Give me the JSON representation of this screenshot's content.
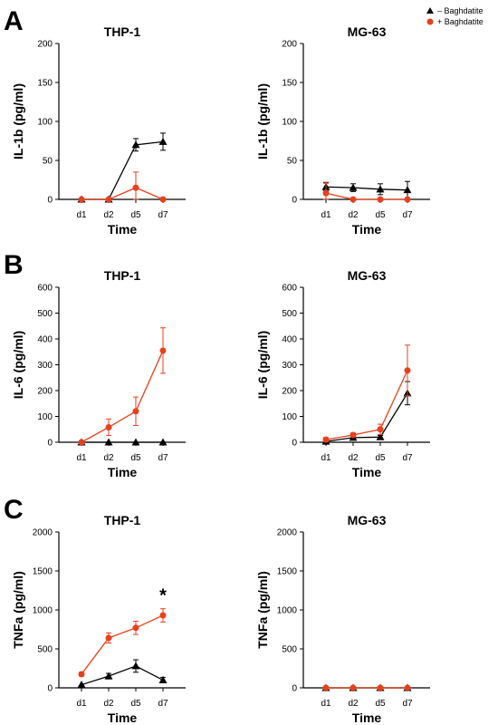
{
  "panel_letters": [
    "A",
    "B",
    "C"
  ],
  "legend": {
    "items": [
      {
        "label": "– Baghdatite",
        "color": "#000000",
        "marker": "triangle"
      },
      {
        "label": "+ Baghdatite",
        "color": "#e8401c",
        "marker": "circle"
      }
    ]
  },
  "chart_data": [
    {
      "type": "line",
      "title": "THP-1",
      "xlabel": "Time",
      "ylabel": "IL-1b (pg/ml)",
      "categories": [
        "d1",
        "d2",
        "d5",
        "d7"
      ],
      "ylim": [
        0,
        200
      ],
      "yticks": [
        0,
        50,
        100,
        150,
        200
      ],
      "series": [
        {
          "name": "– Baghdatite",
          "color": "#000000",
          "marker": "triangle",
          "values": [
            0,
            0,
            70,
            74
          ],
          "errors": [
            0,
            0,
            8,
            11
          ]
        },
        {
          "name": "+ Baghdatite",
          "color": "#e8401c",
          "marker": "circle",
          "values": [
            0,
            0,
            15,
            0
          ],
          "errors": [
            0,
            0,
            20,
            0
          ]
        }
      ]
    },
    {
      "type": "line",
      "title": "MG-63",
      "xlabel": "Time",
      "ylabel": "IL-1b (pg/ml)",
      "categories": [
        "d1",
        "d2",
        "d5",
        "d7"
      ],
      "ylim": [
        0,
        200
      ],
      "yticks": [
        0,
        50,
        100,
        150,
        200
      ],
      "series": [
        {
          "name": "– Baghdatite",
          "color": "#000000",
          "marker": "triangle",
          "values": [
            16,
            15,
            13,
            12
          ],
          "errors": [
            5,
            5,
            7,
            11
          ]
        },
        {
          "name": "+ Baghdatite",
          "color": "#e8401c",
          "marker": "circle",
          "values": [
            8,
            0,
            0,
            0
          ],
          "errors": [
            14,
            0,
            0,
            0
          ]
        }
      ]
    },
    {
      "type": "line",
      "title": "THP-1",
      "xlabel": "Time",
      "ylabel": "IL-6 (pg/ml)",
      "categories": [
        "d1",
        "d2",
        "d5",
        "d7"
      ],
      "ylim": [
        0,
        600
      ],
      "yticks": [
        0,
        100,
        200,
        300,
        400,
        500,
        600
      ],
      "series": [
        {
          "name": "– Baghdatite",
          "color": "#000000",
          "marker": "triangle",
          "values": [
            0,
            0,
            0,
            0
          ],
          "errors": [
            0,
            0,
            0,
            0
          ]
        },
        {
          "name": "+ Baghdatite",
          "color": "#e8401c",
          "marker": "circle",
          "values": [
            0,
            58,
            120,
            355
          ],
          "errors": [
            0,
            32,
            55,
            88
          ]
        }
      ]
    },
    {
      "type": "line",
      "title": "MG-63",
      "xlabel": "Time",
      "ylabel": "IL-6 (pg/ml)",
      "categories": [
        "d1",
        "d2",
        "d5",
        "d7"
      ],
      "ylim": [
        0,
        600
      ],
      "yticks": [
        0,
        100,
        200,
        300,
        400,
        500,
        600
      ],
      "series": [
        {
          "name": "– Baghdatite",
          "color": "#000000",
          "marker": "triangle",
          "values": [
            3,
            18,
            20,
            190
          ],
          "errors": [
            0,
            5,
            6,
            45
          ]
        },
        {
          "name": "+ Baghdatite",
          "color": "#e8401c",
          "marker": "circle",
          "values": [
            10,
            28,
            50,
            278
          ],
          "errors": [
            8,
            8,
            20,
            98
          ]
        }
      ]
    },
    {
      "type": "line",
      "title": "THP-1",
      "xlabel": "Time",
      "ylabel": "TNFa (pg/ml)",
      "categories": [
        "d1",
        "d2",
        "d5",
        "d7"
      ],
      "ylim": [
        0,
        2000
      ],
      "yticks": [
        0,
        500,
        1000,
        1500,
        2000
      ],
      "annotation": "*",
      "series": [
        {
          "name": "– Baghdatite",
          "color": "#000000",
          "marker": "triangle",
          "values": [
            40,
            150,
            280,
            100
          ],
          "errors": [
            0,
            35,
            80,
            35
          ]
        },
        {
          "name": "+ Baghdatite",
          "color": "#e8401c",
          "marker": "circle",
          "values": [
            175,
            640,
            770,
            930
          ],
          "errors": [
            25,
            65,
            85,
            85
          ]
        }
      ]
    },
    {
      "type": "line",
      "title": "MG-63",
      "xlabel": "Time",
      "ylabel": "TNFa (pg/ml)",
      "categories": [
        "d1",
        "d2",
        "d5",
        "d7"
      ],
      "ylim": [
        0,
        2000
      ],
      "yticks": [
        0,
        500,
        1000,
        1500,
        2000
      ],
      "series": [
        {
          "name": "– Baghdatite",
          "color": "#000000",
          "marker": "triangle",
          "values": [
            0,
            0,
            0,
            0
          ],
          "errors": [
            0,
            0,
            0,
            0
          ]
        },
        {
          "name": "+ Baghdatite",
          "color": "#e8401c",
          "marker": "circle",
          "values": [
            0,
            0,
            0,
            0
          ],
          "errors": [
            0,
            0,
            0,
            0
          ]
        }
      ]
    }
  ]
}
